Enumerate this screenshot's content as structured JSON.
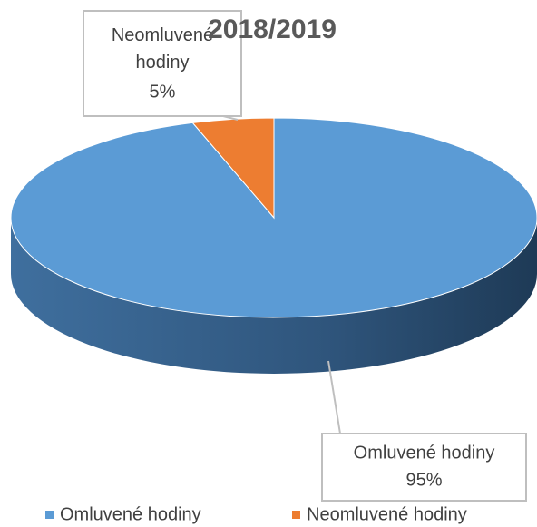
{
  "chart_data": {
    "type": "pie",
    "title": "2018/2019",
    "categories": [
      "Omluvené hodiny",
      "Neomluvené hodiny"
    ],
    "values": [
      95,
      5
    ],
    "value_labels": [
      "95%",
      "5%"
    ],
    "colors": [
      "#5b9bd5",
      "#ed7d31"
    ],
    "legend": "bottom"
  }
}
